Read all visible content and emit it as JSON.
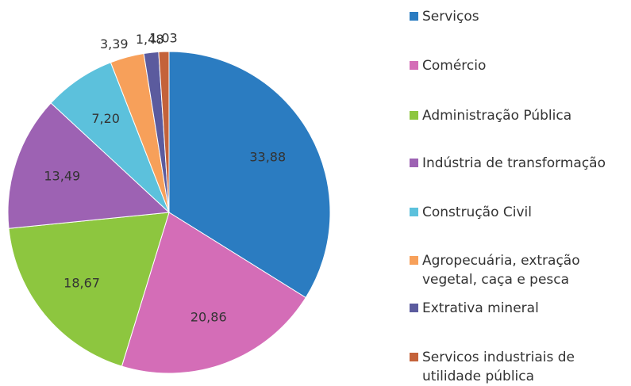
{
  "chart_data": {
    "type": "pie",
    "categories": [
      "Serviços",
      "Comércio",
      "Administração Pública",
      "Indústria de transformação",
      "Construção Civil",
      "Agropecuária, extração vegetal, caça e pesca",
      "Extrativa mineral",
      "Servicos industriais de utilidade pública"
    ],
    "values": [
      33.88,
      20.86,
      18.67,
      13.49,
      7.2,
      3.39,
      1.48,
      1.03
    ],
    "value_labels": [
      "33,88",
      "20,86",
      "18,67",
      "13,49",
      "7,20",
      "3,39",
      "1,48",
      "1,03"
    ],
    "colors": [
      "#2b7cc1",
      "#d46db7",
      "#8dc63f",
      "#9d62b3",
      "#5cc1dc",
      "#f7a05a",
      "#5b5b9e",
      "#c4623a"
    ],
    "legend": "right"
  }
}
